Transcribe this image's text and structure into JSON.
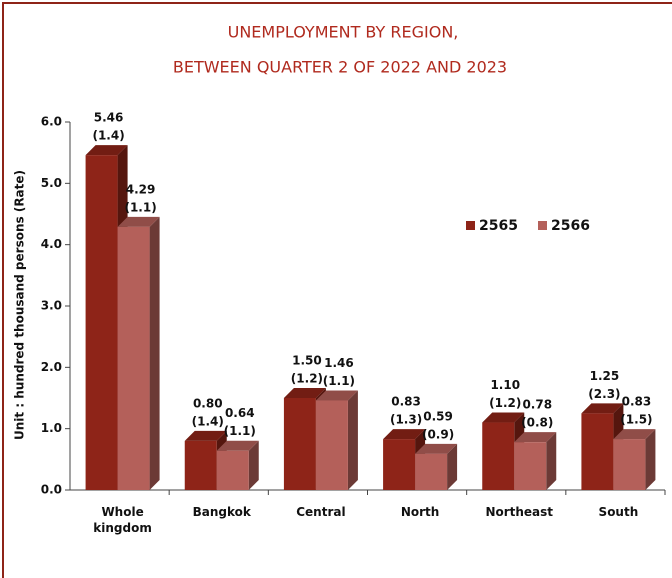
{
  "chart_data": {
    "type": "bar",
    "title": "UNEMPLOYMENT BY REGION,",
    "subtitle": "BETWEEN QUARTER 2 OF 2022 AND 2023",
    "y_label": "Unit : hundred thousand persons (Rate)",
    "categories": [
      "Whole kingdom",
      "Bangkok",
      "Central",
      "North",
      "Northeast",
      "South"
    ],
    "series": [
      {
        "name": "2565",
        "color": "#8e2418",
        "values": [
          5.46,
          0.8,
          1.5,
          0.83,
          1.1,
          1.25
        ],
        "value_labels": [
          "5.46",
          "0.80",
          "1.50",
          "0.83",
          "1.10",
          "1.25"
        ],
        "rate_labels": [
          "(1.4)",
          "(1.4)",
          "(1.2)",
          "(1.3)",
          "(1.2)",
          "(2.3)"
        ]
      },
      {
        "name": "2566",
        "color": "#b4605a",
        "values": [
          4.29,
          0.64,
          1.46,
          0.59,
          0.78,
          0.83
        ],
        "value_labels": [
          "4.29",
          "0.64",
          "1.46",
          "0.59",
          "0.78",
          "0.83"
        ],
        "rate_labels": [
          "(1.1)",
          "(1.1)",
          "(1.1)",
          "(0.9)",
          "(0.8)",
          "(1.5)"
        ]
      }
    ],
    "ylim": [
      0,
      6
    ],
    "yticks": [
      {
        "value": 0,
        "label": "0.0"
      },
      {
        "value": 1,
        "label": "1.0"
      },
      {
        "value": 2,
        "label": "2.0"
      },
      {
        "value": 3,
        "label": "3.0"
      },
      {
        "value": 4,
        "label": "4.0"
      },
      {
        "value": 5,
        "label": "5.0"
      },
      {
        "value": 6,
        "label": "6.0"
      }
    ],
    "legend": "right"
  }
}
